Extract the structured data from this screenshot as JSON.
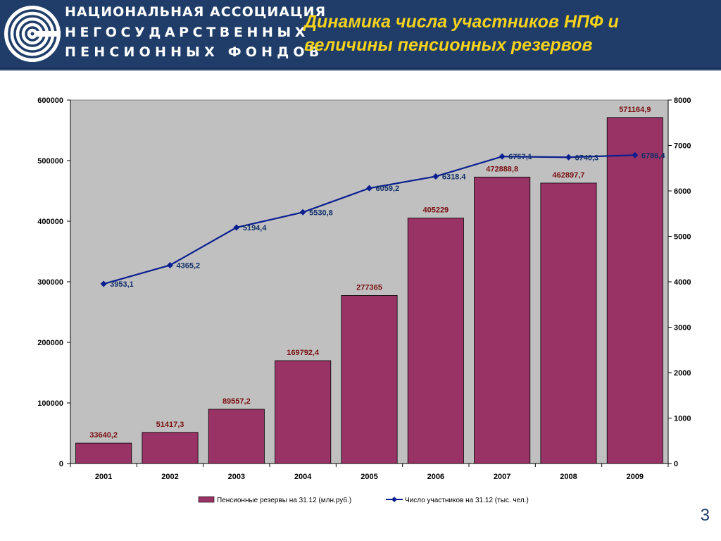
{
  "header": {
    "logo_lines": [
      "НАЦИОНАЛЬНАЯ АССОЦИАЦИЯ",
      "НЕГОСУДАРСТВЕННЫХ",
      "ПЕНСИОННЫХ ФОНДОВ"
    ],
    "title_lines": [
      "Динамика числа участников НПФ и",
      "величины пенсионных резервов"
    ],
    "colors": {
      "background": "#1f3d68",
      "title": "#f5d21c",
      "logo_text": "#ffffff"
    }
  },
  "page_number": "3",
  "chart_data": {
    "type": "bar+line",
    "categories": [
      "2001",
      "2002",
      "2003",
      "2004",
      "2005",
      "2006",
      "2007",
      "2008",
      "2009"
    ],
    "bar_series": {
      "name": "Пенсионные резервы на 31.12 (млн.руб.)",
      "values": [
        33640.2,
        51417.3,
        89557.2,
        169792.4,
        277365,
        405229,
        472888.8,
        462897.7,
        571164.9
      ],
      "labels": [
        "33640,2",
        "51417,3",
        "89557,2",
        "169792,4",
        "277365",
        "405229",
        "472888,8",
        "462897,7",
        "571164,9"
      ],
      "color": "#993366",
      "label_color": "#7a0f10"
    },
    "line_series": {
      "name": "Число участников на 31.12 (тыс. чел.)",
      "values": [
        3953.1,
        4365.2,
        5194.4,
        5530.8,
        6059.2,
        6318.4,
        6757.1,
        6740.3,
        6786.4
      ],
      "labels": [
        "3953,1",
        "4365,2",
        "5194,4",
        "5530,8",
        "6059,2",
        "6318.4",
        "6757,1",
        "6740,3",
        "6786,4"
      ],
      "color": "#0a1f8f",
      "axis": "right"
    },
    "left_axis": {
      "min": 0,
      "max": 600000,
      "ticks": [
        "0",
        "100000",
        "200000",
        "300000",
        "400000",
        "500000",
        "600000"
      ]
    },
    "right_axis": {
      "min": 0,
      "max": 8000,
      "ticks": [
        "0",
        "1000",
        "2000",
        "3000",
        "4000",
        "5000",
        "6000",
        "7000",
        "8000"
      ]
    },
    "plot_background": "#c0c0c0",
    "grid": false,
    "legend_position": "bottom"
  }
}
